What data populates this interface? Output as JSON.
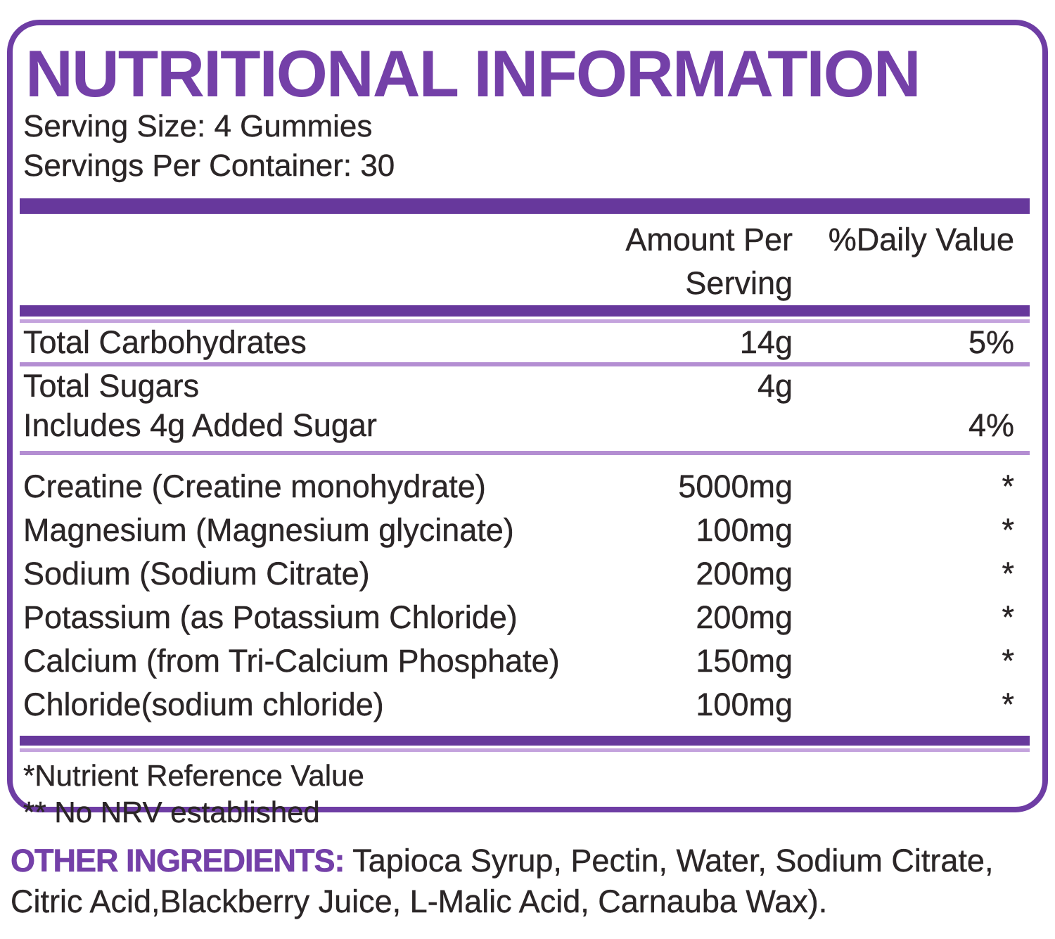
{
  "panel": {
    "title": "NUTRITIONAL INFORMATION",
    "serving_size": "Serving Size: 4 Gummies",
    "servings_per_container": "Servings Per Container: 30"
  },
  "table": {
    "headers": {
      "amount": "Amount Per Serving",
      "daily_value": "%Daily Value"
    },
    "rows": [
      {
        "label": "Total Carbohydrates",
        "amount": "14g",
        "daily_value": "5%"
      },
      {
        "label": "Total Sugars",
        "amount": "4g",
        "daily_value": ""
      },
      {
        "label": "Includes 4g Added Sugar",
        "amount": "",
        "daily_value": "4%"
      },
      {
        "label": "Creatine (Creatine monohydrate)",
        "amount": "5000mg",
        "daily_value": "*"
      },
      {
        "label": "Magnesium (Magnesium glycinate)",
        "amount": "100mg",
        "daily_value": "*"
      },
      {
        "label": "Sodium (Sodium Citrate)",
        "amount": "200mg",
        "daily_value": "*"
      },
      {
        "label": "Potassium (as Potassium Chloride)",
        "amount": "200mg",
        "daily_value": "*"
      },
      {
        "label": "Calcium (from Tri-Calcium Phosphate)",
        "amount": "150mg",
        "daily_value": "*"
      },
      {
        "label": "Chloride(sodium chloride)",
        "amount": "100mg",
        "daily_value": "*"
      }
    ]
  },
  "footnotes": [
    "*Nutrient Reference Value",
    "** No NRV established"
  ],
  "other_ingredients": {
    "label": "OTHER INGREDIENTS:",
    "line1": "Tapioca Syrup, Pectin, Water, Sodium Citrate,",
    "line2": "Citric Acid,Blackberry Juice, L-Malic Acid, Carnauba Wax)."
  },
  "colors": {
    "accent_purple": "#7440a8",
    "border_purple": "#6e3da4",
    "bar_purple": "#67389c",
    "light_divider": "#b48ed2",
    "light_subrule": "#c4a3dd",
    "text_black": "#2b2627"
  }
}
